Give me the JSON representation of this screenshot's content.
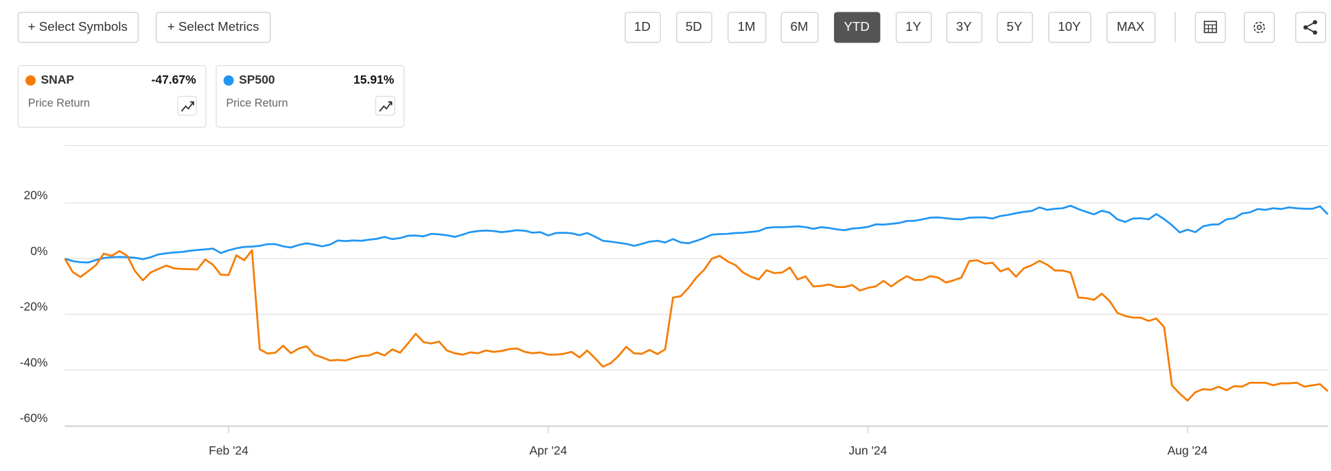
{
  "toolbar": {
    "buttons": [
      "+ Select Symbols",
      "+ Select Metrics"
    ],
    "ranges": [
      "1D",
      "5D",
      "1M",
      "6M",
      "YTD",
      "1Y",
      "3Y",
      "5Y",
      "10Y",
      "MAX"
    ],
    "active_range": 4
  },
  "cards": [
    {
      "return": "-47.67%",
      "metric": "Price Return"
    },
    {
      "return": "15.91%",
      "metric": "Price Return"
    }
  ],
  "chart_data": {
    "type": "line",
    "grid": true,
    "categories": [
      null,
      null,
      null,
      null,
      null,
      null,
      null,
      null,
      null,
      null,
      null,
      null,
      null,
      null,
      null,
      null,
      null,
      null,
      null,
      null,
      null,
      "Feb '24",
      null,
      null,
      null,
      null,
      null,
      null,
      null,
      null,
      null,
      null,
      null,
      null,
      null,
      null,
      null,
      null,
      null,
      null,
      null,
      null,
      null,
      null,
      null,
      null,
      null,
      null,
      null,
      null,
      null,
      null,
      null,
      null,
      null,
      null,
      null,
      null,
      null,
      null,
      null,
      null,
      "Apr '24",
      null,
      null,
      null,
      null,
      null,
      null,
      null,
      null,
      null,
      null,
      null,
      null,
      null,
      null,
      null,
      null,
      null,
      null,
      null,
      null,
      null,
      null,
      null,
      null,
      null,
      null,
      null,
      null,
      null,
      null,
      null,
      null,
      null,
      null,
      null,
      null,
      null,
      null,
      null,
      null,
      "Jun '24",
      null,
      null,
      null,
      null,
      null,
      null,
      null,
      null,
      null,
      null,
      null,
      null,
      null,
      null,
      null,
      null,
      null,
      null,
      null,
      null,
      null,
      null,
      null,
      null,
      null,
      null,
      null,
      null,
      null,
      null,
      null,
      null,
      null,
      null,
      null,
      null,
      null,
      null,
      null,
      null,
      "Aug '24",
      null,
      null,
      null,
      null,
      null,
      null,
      null,
      null,
      null,
      null,
      null,
      null,
      null,
      null,
      null,
      null,
      null,
      null
    ],
    "series": [
      {
        "name": "SNAP",
        "color": "#f57c00",
        "values": [
          0,
          -4.8,
          -6.6,
          -4.5,
          -2.3,
          1.8,
          1.0,
          2.7,
          1.0,
          -4.5,
          -7.8,
          -5.0,
          -3.7,
          -2.5,
          -3.5,
          -3.7,
          -3.8,
          -3.9,
          -0.3,
          -2.2,
          -5.8,
          -5.9,
          1.2,
          -0.6,
          3.0,
          -32.6,
          -34.1,
          -33.8,
          -31.3,
          -34.0,
          -32.3,
          -31.5,
          -34.5,
          -35.5,
          -36.6,
          -36.4,
          -36.6,
          -35.7,
          -35.0,
          -34.8,
          -33.7,
          -34.8,
          -32.6,
          -33.8,
          -30.5,
          -27.0,
          -30.0,
          -30.5,
          -29.8,
          -33.0,
          -34.0,
          -34.5,
          -33.7,
          -34.0,
          -33.0,
          -33.5,
          -33.2,
          -32.5,
          -32.3,
          -33.5,
          -34.0,
          -33.7,
          -34.5,
          -34.5,
          -34.2,
          -33.5,
          -35.5,
          -33.0,
          -35.8,
          -38.8,
          -37.6,
          -35.0,
          -31.7,
          -34.0,
          -34.2,
          -32.8,
          -34.3,
          -32.6,
          -14.0,
          -13.5,
          -10.5,
          -6.8,
          -4.0,
          0.0,
          1.0,
          -1.0,
          -2.3,
          -5.0,
          -6.5,
          -7.5,
          -4.2,
          -5.2,
          -5.0,
          -3.2,
          -7.5,
          -6.4,
          -10.0,
          -9.8,
          -9.3,
          -10.2,
          -10.2,
          -9.5,
          -11.5,
          -10.5,
          -10.0,
          -8.0,
          -10.0,
          -8.0,
          -6.3,
          -7.7,
          -7.6,
          -6.3,
          -6.8,
          -8.6,
          -7.8,
          -6.8,
          -0.9,
          -0.6,
          -1.8,
          -1.5,
          -4.6,
          -3.5,
          -6.5,
          -3.5,
          -2.4,
          -0.8,
          -2.2,
          -4.3,
          -4.3,
          -5.0,
          -14.0,
          -14.2,
          -14.8,
          -12.6,
          -15.2,
          -19.5,
          -20.6,
          -21.2,
          -21.2,
          -22.4,
          -21.5,
          -24.6,
          -45.5,
          -48.5,
          -51.0,
          -48.0,
          -46.9,
          -47.1,
          -46.0,
          -47.3,
          -45.8,
          -46.0,
          -44.6,
          -44.6,
          -44.6,
          -45.5,
          -44.8,
          -44.8,
          -44.6,
          -46.0,
          -45.5,
          -45.1,
          -47.67
        ]
      },
      {
        "name": "SP500",
        "color": "#2196f3",
        "values": [
          0,
          -0.9,
          -1.3,
          -1.4,
          -0.5,
          0.2,
          0.5,
          0.6,
          0.5,
          0.3,
          -0.2,
          0.5,
          1.5,
          1.9,
          2.2,
          2.4,
          2.8,
          3.1,
          3.3,
          3.6,
          2.0,
          3.0,
          3.7,
          4.2,
          4.3,
          4.6,
          5.2,
          5.2,
          4.4,
          4.0,
          4.9,
          5.5,
          5.0,
          4.4,
          5.0,
          6.5,
          6.3,
          6.5,
          6.4,
          6.8,
          7.1,
          7.8,
          7.0,
          7.4,
          8.2,
          8.3,
          8.0,
          8.9,
          8.7,
          8.4,
          7.8,
          8.6,
          9.5,
          9.9,
          10.1,
          9.9,
          9.5,
          9.8,
          10.2,
          10.0,
          9.3,
          9.5,
          8.3,
          9.2,
          9.3,
          9.1,
          8.4,
          9.2,
          7.9,
          6.4,
          6.1,
          5.7,
          5.3,
          4.6,
          5.3,
          6.1,
          6.4,
          5.8,
          7.0,
          5.8,
          5.5,
          6.4,
          7.4,
          8.6,
          8.8,
          8.9,
          9.2,
          9.3,
          9.6,
          9.9,
          11.0,
          11.3,
          11.3,
          11.4,
          11.6,
          11.3,
          10.7,
          11.3,
          11.0,
          10.5,
          10.2,
          10.8,
          11.0,
          11.4,
          12.3,
          12.2,
          12.5,
          12.8,
          13.5,
          13.6,
          14.1,
          14.7,
          14.8,
          14.5,
          14.2,
          14.1,
          14.7,
          14.8,
          14.8,
          14.4,
          15.3,
          15.7,
          16.3,
          16.8,
          17.1,
          18.4,
          17.5,
          17.9,
          18.1,
          19.0,
          17.8,
          16.8,
          15.9,
          17.2,
          16.5,
          14.1,
          13.2,
          14.4,
          14.5,
          14.1,
          16.0,
          14.2,
          12.0,
          9.4,
          10.4,
          9.5,
          11.6,
          12.2,
          12.3,
          14.1,
          14.5,
          16.2,
          16.6,
          17.8,
          17.5,
          18.1,
          17.8,
          18.4,
          18.1,
          17.9,
          17.9,
          18.8,
          15.91
        ]
      }
    ],
    "ylim": [
      -60.3,
      40.6
    ],
    "yticks": [
      {
        "value": -60,
        "label": "-60%"
      },
      {
        "value": -40,
        "label": "-40%"
      },
      {
        "value": -20,
        "label": "-20%"
      },
      {
        "value": 0,
        "label": "0%"
      },
      {
        "value": 20,
        "label": "20%"
      }
    ]
  }
}
